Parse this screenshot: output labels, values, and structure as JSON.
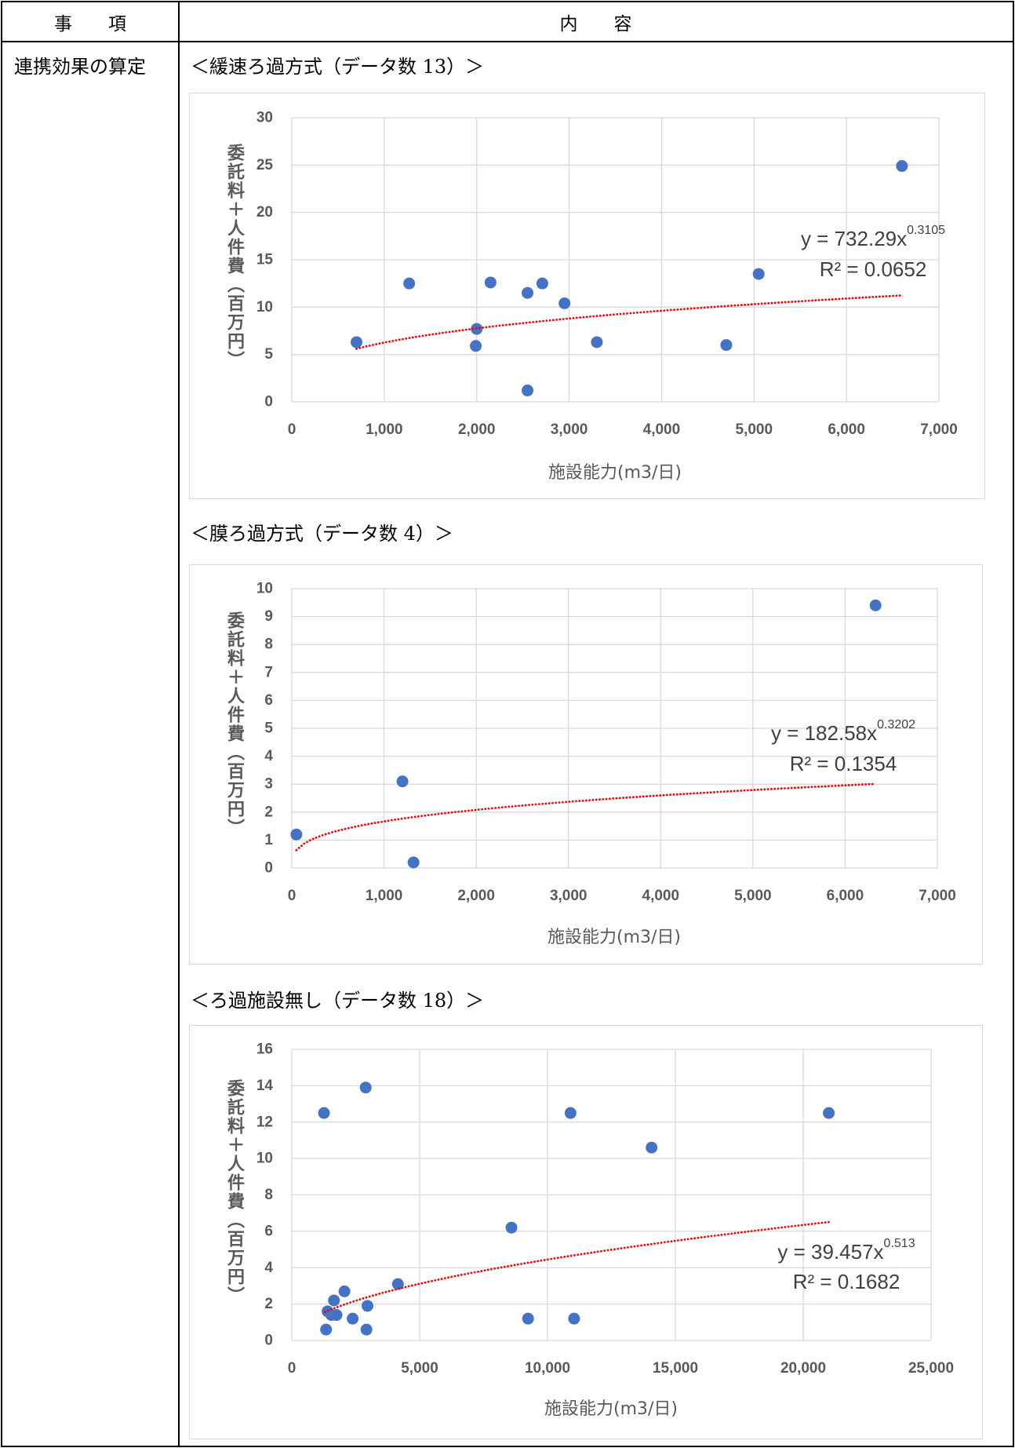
{
  "header": {
    "item_label": "事　　項",
    "content_label": "内　　容"
  },
  "row": {
    "item": "連携効果の算定"
  },
  "sections": [
    {
      "title": "＜緩速ろ過方式（データ数 13）＞"
    },
    {
      "title": "＜膜ろ過方式（データ数 4）＞"
    },
    {
      "title": "＜ろ過施設無し（データ数 18）＞"
    }
  ],
  "colors": {
    "points": "#4472C4",
    "trendline": "#FF0000",
    "gridlines": "#D9D9D9",
    "axis_text": "#595959",
    "equation_text": "#404040"
  },
  "chart_data": [
    {
      "type": "scatter",
      "xlabel": "施設能力(m3/日)",
      "ylabel": "委託料＋人件費（百万円）",
      "xlim": [
        0,
        7000
      ],
      "ylim": [
        0,
        30
      ],
      "xticks": [
        "0",
        "1,000",
        "2,000",
        "3,000",
        "4,000",
        "5,000",
        "6,000",
        "7,000"
      ],
      "yticks": [
        "0",
        "5",
        "10",
        "15",
        "20",
        "25",
        "30"
      ],
      "grid": true,
      "series": [
        {
          "x": [
            700,
            1270,
            1990,
            2000,
            2150,
            2550,
            2550,
            2710,
            2950,
            3300,
            4700,
            5050,
            6600
          ],
          "y": [
            6.3,
            12.5,
            5.9,
            7.7,
            12.6,
            11.5,
            1.2,
            12.5,
            10.4,
            6.3,
            6.0,
            13.5,
            24.9
          ]
        }
      ],
      "trendline": {
        "type": "power",
        "equation": "y = 732.29x",
        "exponent": "0.3105",
        "r2": "R² = 0.0652",
        "x_range": [
          700,
          6600
        ]
      }
    },
    {
      "type": "scatter",
      "xlabel": "施設能力(m3/日)",
      "ylabel": "委託料＋人件費（百万円）",
      "xlim": [
        0,
        7000
      ],
      "ylim": [
        0,
        10
      ],
      "xticks": [
        "0",
        "1,000",
        "2,000",
        "3,000",
        "4,000",
        "5,000",
        "6,000",
        "7,000"
      ],
      "yticks": [
        "0",
        "1",
        "2",
        "3",
        "4",
        "5",
        "6",
        "7",
        "8",
        "9",
        "10"
      ],
      "grid": true,
      "series": [
        {
          "x": [
            50,
            1200,
            1320,
            6330
          ],
          "y": [
            1.2,
            3.1,
            0.2,
            9.4
          ]
        }
      ],
      "trendline": {
        "type": "power",
        "equation": "y = 182.58x",
        "exponent": "0.3202",
        "r2": "R² = 0.1354",
        "x_range": [
          50,
          6300
        ]
      }
    },
    {
      "type": "scatter",
      "xlabel": "施設能力(m3/日)",
      "ylabel": "委託料＋人件費（百万円）",
      "xlim": [
        0,
        25000
      ],
      "ylim": [
        0,
        16
      ],
      "xticks": [
        "0",
        "5,000",
        "10,000",
        "15,000",
        "20,000",
        "25,000"
      ],
      "yticks": [
        "0",
        "2",
        "4",
        "6",
        "8",
        "10",
        "12",
        "14",
        "16"
      ],
      "grid": true,
      "series": [
        {
          "x": [
            1260,
            1340,
            1400,
            1550,
            1650,
            1750,
            2060,
            2380,
            2890,
            2920,
            2960,
            4150,
            8590,
            9240,
            10900,
            11040,
            14070,
            21000
          ],
          "y": [
            12.5,
            0.6,
            1.6,
            1.4,
            2.2,
            1.4,
            2.7,
            1.2,
            13.9,
            0.6,
            1.9,
            3.1,
            6.2,
            1.2,
            12.5,
            1.2,
            10.6,
            12.5
          ]
        }
      ],
      "trendline": {
        "type": "power",
        "equation": "y = 39.457x",
        "exponent": "0.513",
        "r2": "R² = 0.1682",
        "x_range": [
          1300,
          21000
        ]
      }
    }
  ]
}
